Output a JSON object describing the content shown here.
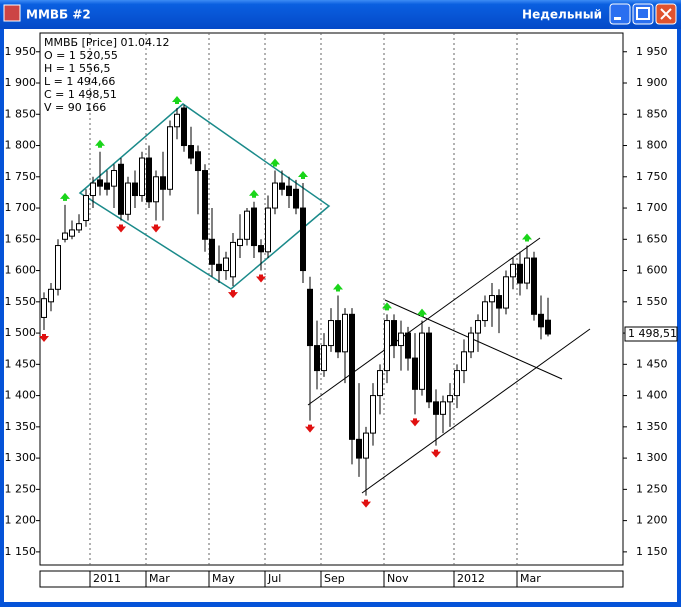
{
  "chart_data": {
    "type": "candlestick",
    "title": "ММВБ #2",
    "subtitle": "Недельный",
    "info": [
      "ММВБ [Price] 01.04.12",
      "O = 1 520,55",
      "H = 1 556,5",
      "L = 1 494,66",
      "C = 1 498,51",
      "V = 90 166"
    ],
    "categories": [
      null,
      null,
      null,
      null,
      null,
      null,
      null,
      "2011",
      null,
      null,
      null,
      null,
      null,
      null,
      null,
      "Mar",
      null,
      null,
      null,
      null,
      null,
      null,
      null,
      null,
      "May",
      null,
      null,
      null,
      null,
      null,
      null,
      null,
      "Jul",
      null,
      null,
      null,
      null,
      null,
      null,
      null,
      "Sep",
      null,
      null,
      null,
      null,
      null,
      null,
      null,
      null,
      "Nov",
      null,
      null,
      null,
      null,
      null,
      null,
      null,
      null,
      null,
      "2012",
      null,
      null,
      null,
      null,
      null,
      null,
      null,
      null,
      "Mar",
      null,
      null,
      null,
      null
    ],
    "open": [
      1525,
      1550,
      1570,
      1650,
      1655,
      1665,
      1680,
      1720,
      1745,
      1740,
      1735,
      1770,
      1690,
      1740,
      1720,
      1780,
      1710,
      1750,
      1730,
      1830,
      1860,
      1800,
      1790,
      1760,
      1650,
      1610,
      1600,
      1590,
      1640,
      1650,
      1700,
      1640,
      1630,
      1700,
      1740,
      1735,
      1730,
      1700,
      1570,
      1480,
      1440,
      1480,
      1520,
      1470,
      1530,
      1330,
      1300,
      1340,
      1400,
      1440,
      1520,
      1480,
      1500,
      1460,
      1410,
      1500,
      1390,
      1370,
      1390,
      1400,
      1440,
      1470,
      1500,
      1520,
      1550,
      1560,
      1540,
      1590,
      1610,
      1580,
      1620,
      1530,
      1520.55
    ],
    "high": [
      1565,
      1580,
      1650,
      1705,
      1680,
      1690,
      1730,
      1750,
      1790,
      1760,
      1770,
      1780,
      1750,
      1760,
      1790,
      1800,
      1760,
      1790,
      1840,
      1860,
      1865,
      1830,
      1800,
      1770,
      1700,
      1640,
      1630,
      1660,
      1690,
      1700,
      1710,
      1650,
      1720,
      1760,
      1760,
      1750,
      1745,
      1740,
      1590,
      1520,
      1500,
      1540,
      1560,
      1540,
      1540,
      1420,
      1350,
      1420,
      1450,
      1530,
      1530,
      1520,
      1510,
      1500,
      1520,
      1510,
      1410,
      1400,
      1420,
      1450,
      1490,
      1510,
      1530,
      1560,
      1580,
      1570,
      1600,
      1620,
      1630,
      1640,
      1630,
      1560,
      1556.5
    ],
    "low": [
      1505,
      1535,
      1560,
      1645,
      1650,
      1660,
      1670,
      1700,
      1720,
      1720,
      1700,
      1680,
      1680,
      1700,
      1710,
      1700,
      1680,
      1680,
      1720,
      1810,
      1790,
      1770,
      1690,
      1630,
      1590,
      1580,
      1585,
      1575,
      1620,
      1640,
      1620,
      1600,
      1620,
      1690,
      1720,
      1700,
      1690,
      1580,
      1360,
      1410,
      1430,
      1470,
      1460,
      1420,
      1290,
      1270,
      1240,
      1320,
      1370,
      1420,
      1460,
      1440,
      1440,
      1370,
      1400,
      1380,
      1320,
      1340,
      1350,
      1380,
      1420,
      1460,
      1470,
      1510,
      1510,
      1500,
      1530,
      1570,
      1560,
      1570,
      1520,
      1490,
      1494.66
    ],
    "close": [
      1555,
      1570,
      1640,
      1660,
      1665,
      1675,
      1720,
      1740,
      1735,
      1730,
      1760,
      1690,
      1740,
      1720,
      1780,
      1710,
      1750,
      1730,
      1830,
      1850,
      1800,
      1780,
      1760,
      1650,
      1610,
      1600,
      1620,
      1645,
      1650,
      1695,
      1640,
      1630,
      1700,
      1740,
      1730,
      1720,
      1700,
      1600,
      1480,
      1440,
      1480,
      1520,
      1470,
      1530,
      1330,
      1300,
      1340,
      1400,
      1440,
      1520,
      1480,
      1500,
      1460,
      1410,
      1500,
      1390,
      1370,
      1390,
      1400,
      1440,
      1470,
      1500,
      1520,
      1550,
      1560,
      1540,
      1590,
      1610,
      1580,
      1620,
      1530,
      1510,
      1498.51
    ],
    "up_marks": [
      3,
      8,
      19,
      30,
      33,
      37,
      42,
      49,
      54,
      69
    ],
    "down_marks": [
      0,
      11,
      16,
      27,
      31,
      38,
      46,
      53,
      56
    ],
    "last_price": {
      "value": 1498.51,
      "label": "1 498,51"
    },
    "ylim": [
      1129,
      1980
    ],
    "yticks": [
      {
        "value": 1150,
        "label": "1 150"
      },
      {
        "value": 1200,
        "label": "1 200"
      },
      {
        "value": 1250,
        "label": "1 250"
      },
      {
        "value": 1300,
        "label": "1 300"
      },
      {
        "value": 1350,
        "label": "1 350"
      },
      {
        "value": 1400,
        "label": "1 400"
      },
      {
        "value": 1450,
        "label": "1 450"
      },
      {
        "value": 1500,
        "label": "1 500"
      },
      {
        "value": 1550,
        "label": "1 550"
      },
      {
        "value": 1600,
        "label": "1 600"
      },
      {
        "value": 1650,
        "label": "1 650"
      },
      {
        "value": 1700,
        "label": "1 700"
      },
      {
        "value": 1750,
        "label": "1 750"
      },
      {
        "value": 1800,
        "label": "1 800"
      },
      {
        "value": 1850,
        "label": "1 850"
      },
      {
        "value": 1900,
        "label": "1 900"
      },
      {
        "value": 1950,
        "label": "1 950"
      }
    ]
  }
}
